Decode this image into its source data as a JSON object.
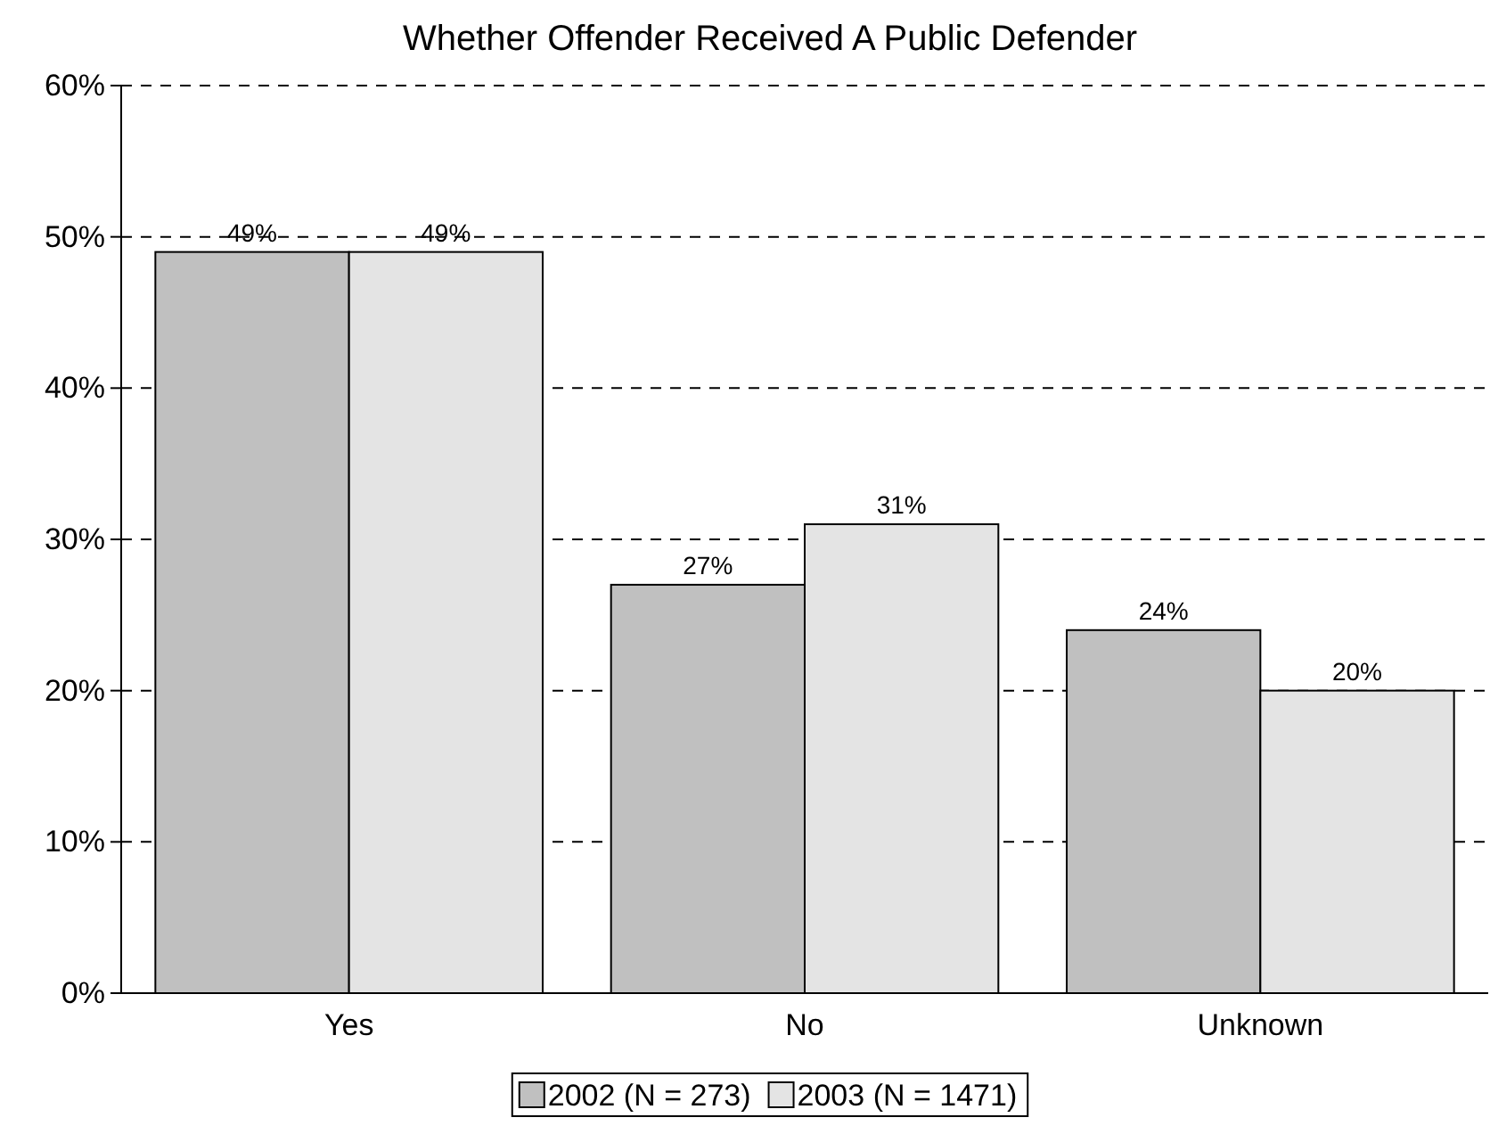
{
  "chart_data": {
    "type": "bar",
    "title": "Whether Offender Received A Public Defender",
    "categories": [
      "Yes",
      "No",
      "Unknown"
    ],
    "series": [
      {
        "name": "2002 (N = 273)",
        "color": "#c0c0c0",
        "values": [
          49,
          27,
          24
        ],
        "value_labels": [
          "49%",
          "27%",
          "24%"
        ]
      },
      {
        "name": "2003 (N = 1471)",
        "color": "#e4e4e4",
        "values": [
          49,
          31,
          20
        ],
        "value_labels": [
          "49%",
          "31%",
          "20%"
        ]
      }
    ],
    "ylim": [
      0,
      60
    ],
    "yticks": [
      {
        "value": 0,
        "label": "0%"
      },
      {
        "value": 10,
        "label": "10%"
      },
      {
        "value": 20,
        "label": "20%"
      },
      {
        "value": 30,
        "label": "30%"
      },
      {
        "value": 40,
        "label": "40%"
      },
      {
        "value": 50,
        "label": "50%"
      },
      {
        "value": 60,
        "label": "60%"
      }
    ],
    "grid": "y",
    "line_style": "dashed",
    "legend": "bottom"
  }
}
